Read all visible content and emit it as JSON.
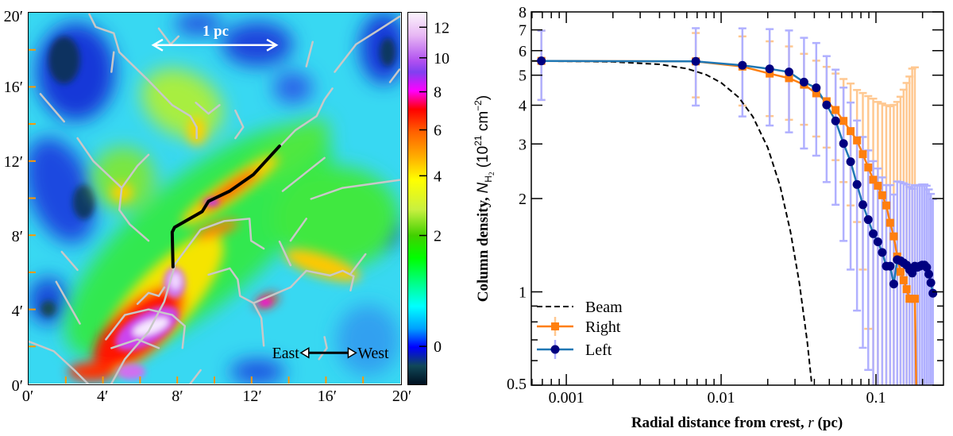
{
  "map_panel": {
    "x_ticks": [
      "0′",
      "4′",
      "8′",
      "12′",
      "16′",
      "20′"
    ],
    "y_ticks": [
      "0′",
      "4′",
      "8′",
      "12′",
      "16′",
      "20′"
    ],
    "x_range_arcmin": [
      0,
      20
    ],
    "y_range_arcmin": [
      0,
      20
    ],
    "scale_bar_label": "1 pc",
    "east_label": "East",
    "west_label": "West",
    "colorbar": {
      "ticks": [
        0,
        2,
        4,
        6,
        8,
        10,
        12
      ],
      "tick_labels": [
        "0",
        "2",
        "4",
        "6",
        "8",
        "10",
        "12"
      ]
    },
    "colors": {
      "filament": "#c8c8c8",
      "crest": "#000000",
      "tick": "#ff9900"
    }
  },
  "chart_data": {
    "type": "line",
    "xlabel_parts": [
      "Radial distance from crest, ",
      "r",
      " (pc)"
    ],
    "ylabel_parts": [
      "Column density, ",
      "N",
      "H",
      "2",
      " (10",
      "21",
      " cm",
      "−2",
      ")"
    ],
    "xscale": "log",
    "yscale": "log",
    "xlim": [
      0.000594,
      0.273
    ],
    "ylim": [
      0.5,
      8
    ],
    "x_ticks": [
      0.001,
      0.01,
      0.1
    ],
    "x_tick_labels": [
      "0.001",
      "0.01",
      "0.1"
    ],
    "y_ticks": [
      0.5,
      1,
      2,
      3,
      4,
      5,
      6,
      7,
      8
    ],
    "y_tick_labels": [
      "0.5",
      "1",
      "2",
      "3",
      "4",
      "5",
      "6",
      "7",
      "8"
    ],
    "legend": {
      "placement": "lower-left",
      "entries": [
        "Beam",
        "Right",
        "Left"
      ]
    },
    "series": [
      {
        "name": "Beam",
        "style": "dashed",
        "color": "#000000",
        "x": [
          0.0006,
          0.002,
          0.004,
          0.006,
          0.008,
          0.01,
          0.013,
          0.016,
          0.02,
          0.024,
          0.028,
          0.032,
          0.036,
          0.04
        ],
        "y": [
          5.56,
          5.52,
          5.42,
          5.25,
          5.02,
          4.73,
          4.24,
          3.68,
          2.92,
          2.2,
          1.57,
          1.07,
          0.69,
          0.42
        ]
      },
      {
        "name": "Right",
        "color": "#ff7f0e",
        "marker": "square",
        "err_color": "#ffc891",
        "x": [
          0.00069,
          0.00686,
          0.01372,
          0.02058,
          0.02744,
          0.0343,
          0.04116,
          0.04802,
          0.05488,
          0.06174,
          0.0686,
          0.07546,
          0.08232,
          0.08918,
          0.09604,
          0.1029,
          0.10976,
          0.11662,
          0.12348,
          0.13034,
          0.1372,
          0.14406,
          0.15092,
          0.15778,
          0.16464,
          0.1715,
          0.17836,
          0.18522
        ],
        "y": [
          5.56,
          5.54,
          5.33,
          5.06,
          4.89,
          4.66,
          4.37,
          4.12,
          3.86,
          3.56,
          3.3,
          3.08,
          2.78,
          2.52,
          2.3,
          2.2,
          2.05,
          1.9,
          1.67,
          1.51,
          1.3,
          1.16,
          1.09,
          1.02,
          0.95,
          0.95,
          0.95,
          0.3
        ],
        "err": [
          1.4,
          1.3,
          1.34,
          1.37,
          1.3,
          1.2,
          1.2,
          1.2,
          1.2,
          1.3,
          1.4,
          1.4,
          1.6,
          1.76,
          1.9,
          1.9,
          2.0,
          2.1,
          2.3,
          2.5,
          2.8,
          3.1,
          3.4,
          3.7,
          4.0,
          4.3,
          4.35,
          0
        ]
      },
      {
        "name": "Left",
        "color": "#1f77b4",
        "marker_color": "#000080",
        "marker": "circle",
        "err_color": "#b0b0ff",
        "x": [
          0.00069,
          0.00686,
          0.01372,
          0.02058,
          0.02744,
          0.0343,
          0.04116,
          0.04802,
          0.05488,
          0.06174,
          0.0686,
          0.07546,
          0.08232,
          0.08918,
          0.09604,
          0.1029,
          0.10976,
          0.11662,
          0.12348,
          0.13034,
          0.1372,
          0.14406,
          0.15092,
          0.15778,
          0.16464,
          0.1715,
          0.17836,
          0.18522,
          0.19208,
          0.19894,
          0.2058,
          0.21266,
          0.21952,
          0.22638,
          0.23324
        ],
        "y": [
          5.56,
          5.54,
          5.38,
          5.24,
          5.12,
          4.75,
          4.55,
          4.01,
          3.56,
          3.01,
          2.63,
          2.22,
          1.91,
          1.71,
          1.54,
          1.45,
          1.34,
          1.21,
          1.21,
          1.06,
          1.27,
          1.26,
          1.24,
          1.22,
          1.18,
          1.15,
          1.21,
          1.2,
          1.21,
          1.22,
          1.22,
          1.2,
          1.14,
          1.07,
          0.99
        ],
        "err": [
          1.4,
          1.55,
          1.7,
          1.8,
          1.85,
          1.85,
          1.8,
          1.75,
          1.65,
          1.55,
          1.45,
          1.35,
          1.25,
          1.15,
          1.1,
          1.05,
          1.0,
          1.0,
          1.0,
          1.0,
          1.0,
          1.0,
          1.0,
          1.0,
          1.0,
          1.0,
          1.0,
          1.0,
          1.0,
          1.0,
          1.0,
          1.0,
          1.0,
          1.0,
          1.0
        ]
      }
    ]
  }
}
